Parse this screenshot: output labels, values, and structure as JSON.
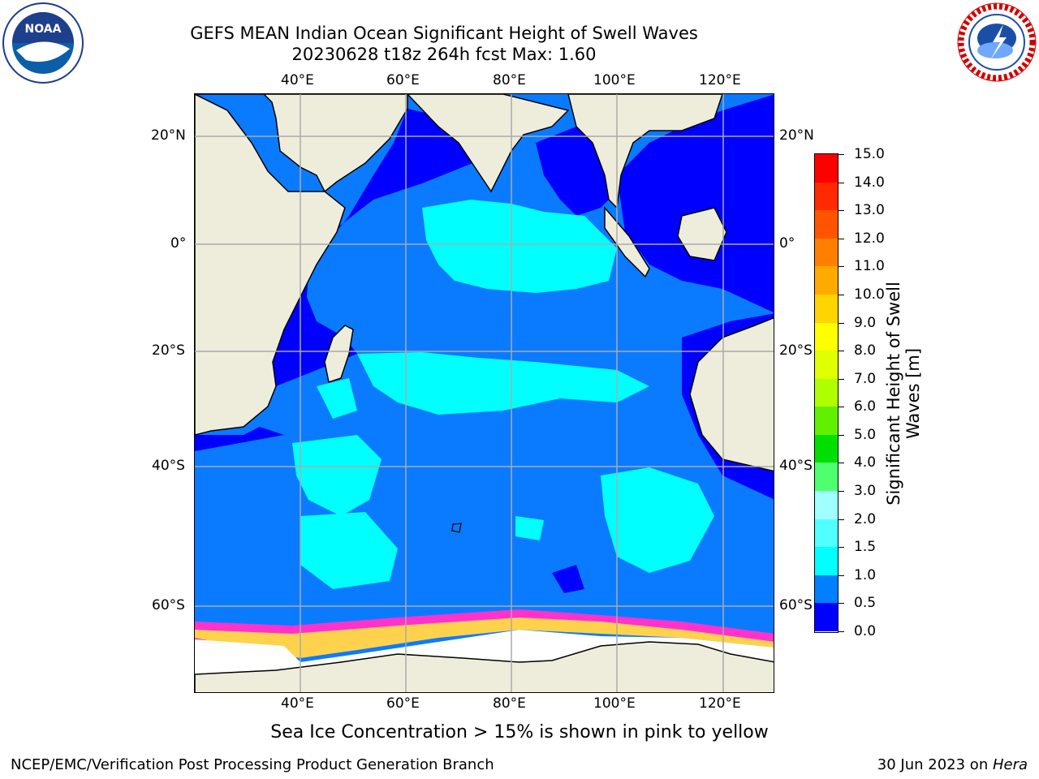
{
  "title": {
    "line1": "GEFS MEAN Indian Ocean Significant Height of Swell Waves",
    "line2": "20230628 t18z 264h fcst   Max: 1.60"
  },
  "axes": {
    "lon_labels": [
      "40°E",
      "60°E",
      "80°E",
      "100°E",
      "120°E"
    ],
    "lat_labels": [
      "20°N",
      "0°",
      "20°S",
      "40°S",
      "60°S"
    ]
  },
  "colorbar": {
    "title_line1": "Significant Height of Swell",
    "title_line2": "Waves [m]",
    "ticks": [
      "15.0",
      "14.0",
      "13.0",
      "12.0",
      "11.0",
      "10.0",
      "9.0",
      "8.0",
      "7.0",
      "6.0",
      "5.0",
      "4.0",
      "3.0",
      "2.0",
      "1.5",
      "1.0",
      "0.5",
      "0.0"
    ],
    "colors": [
      "#ff0000",
      "#ff2a00",
      "#ff5500",
      "#ff8000",
      "#ffaa00",
      "#ffd400",
      "#ffff00",
      "#e0ff00",
      "#b0ff00",
      "#60f000",
      "#00e000",
      "#50ff70",
      "#a0ffff",
      "#50ffff",
      "#00ffff",
      "#0080ff",
      "#0000ff"
    ]
  },
  "caption": "Sea Ice Concentration > 15% is shown in pink to yellow",
  "footer": {
    "left": "NCEP/EMC/Verification Post Processing Product Generation Branch",
    "right_prefix": "30 Jun 2023 on ",
    "right_italic": "Hera"
  },
  "logos": {
    "noaa": "NOAA",
    "nws": "NATIONAL WEATHER SERVICE"
  },
  "map_colors": {
    "land": "#eeeddc",
    "ocean_base": "#0a7bff",
    "ocean_deep": "#0000ff",
    "swell_high": "#00ffff",
    "ice": "#ffffff",
    "ice_edge": "#ff33cc"
  }
}
